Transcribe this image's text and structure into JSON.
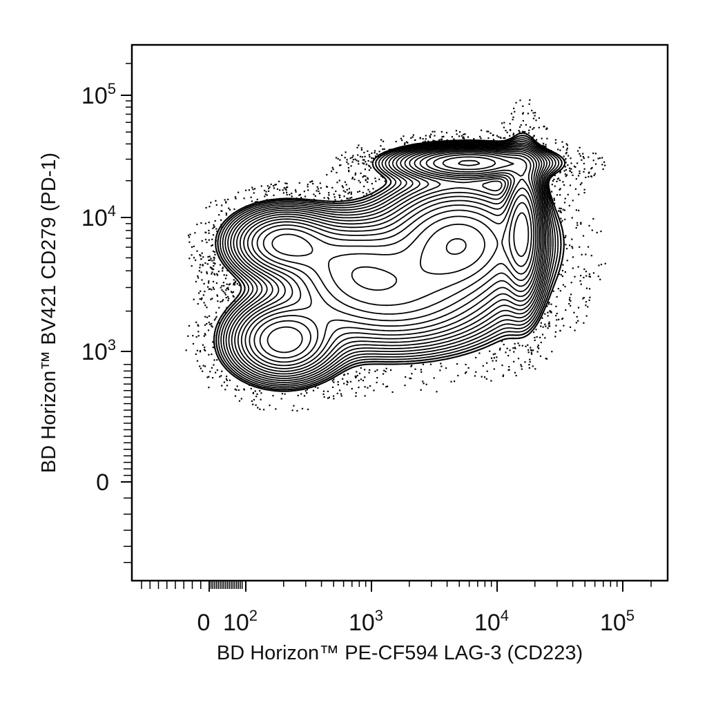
{
  "chart_data": {
    "type": "contour",
    "title": "",
    "xlabel": "BD Horizon™ PE-CF594 LAG-3 (CD223)",
    "ylabel": "BD Horizon™ BV421 CD279 (PD-1)",
    "x_scale": "biexponential",
    "y_scale": "biexponential",
    "xlim": [
      -40,
      300000
    ],
    "ylim": [
      -300,
      300000
    ],
    "x_ticks": [
      {
        "value": 0,
        "label": "0",
        "base": "",
        "exp": ""
      },
      {
        "value": 100,
        "label": "10^2",
        "base": "10",
        "exp": "2"
      },
      {
        "value": 1000,
        "label": "10^3",
        "base": "10",
        "exp": "3"
      },
      {
        "value": 10000,
        "label": "10^4",
        "base": "10",
        "exp": "4"
      },
      {
        "value": 100000,
        "label": "10^5",
        "base": "10",
        "exp": "5"
      }
    ],
    "y_ticks": [
      {
        "value": 0,
        "label": "0",
        "base": "",
        "exp": ""
      },
      {
        "value": 1000,
        "label": "10^3",
        "base": "10",
        "exp": "3"
      },
      {
        "value": 10000,
        "label": "10^4",
        "base": "10",
        "exp": "4"
      },
      {
        "value": 100000,
        "label": "10^5",
        "base": "10",
        "exp": "5"
      }
    ],
    "populations": [
      {
        "x": 200,
        "y": 6500,
        "weight": 0.7,
        "sx": 0.22,
        "sy": 0.14
      },
      {
        "x": 200,
        "y": 1200,
        "weight": 0.8,
        "sx": 0.22,
        "sy": 0.16
      },
      {
        "x": 700,
        "y": 4500,
        "weight": 0.55,
        "sx": 0.3,
        "sy": 0.2
      },
      {
        "x": 5000,
        "y": 6500,
        "weight": 1.0,
        "sx": 0.32,
        "sy": 0.24
      },
      {
        "x": 16000,
        "y": 8000,
        "weight": 0.95,
        "sx": 0.08,
        "sy": 0.3
      },
      {
        "x": 6000,
        "y": 28000,
        "weight": 0.85,
        "sx": 0.3,
        "sy": 0.07
      },
      {
        "x": 1500,
        "y": 2500,
        "weight": 0.6,
        "sx": 0.45,
        "sy": 0.22
      }
    ],
    "grid": false,
    "legend": "none"
  }
}
